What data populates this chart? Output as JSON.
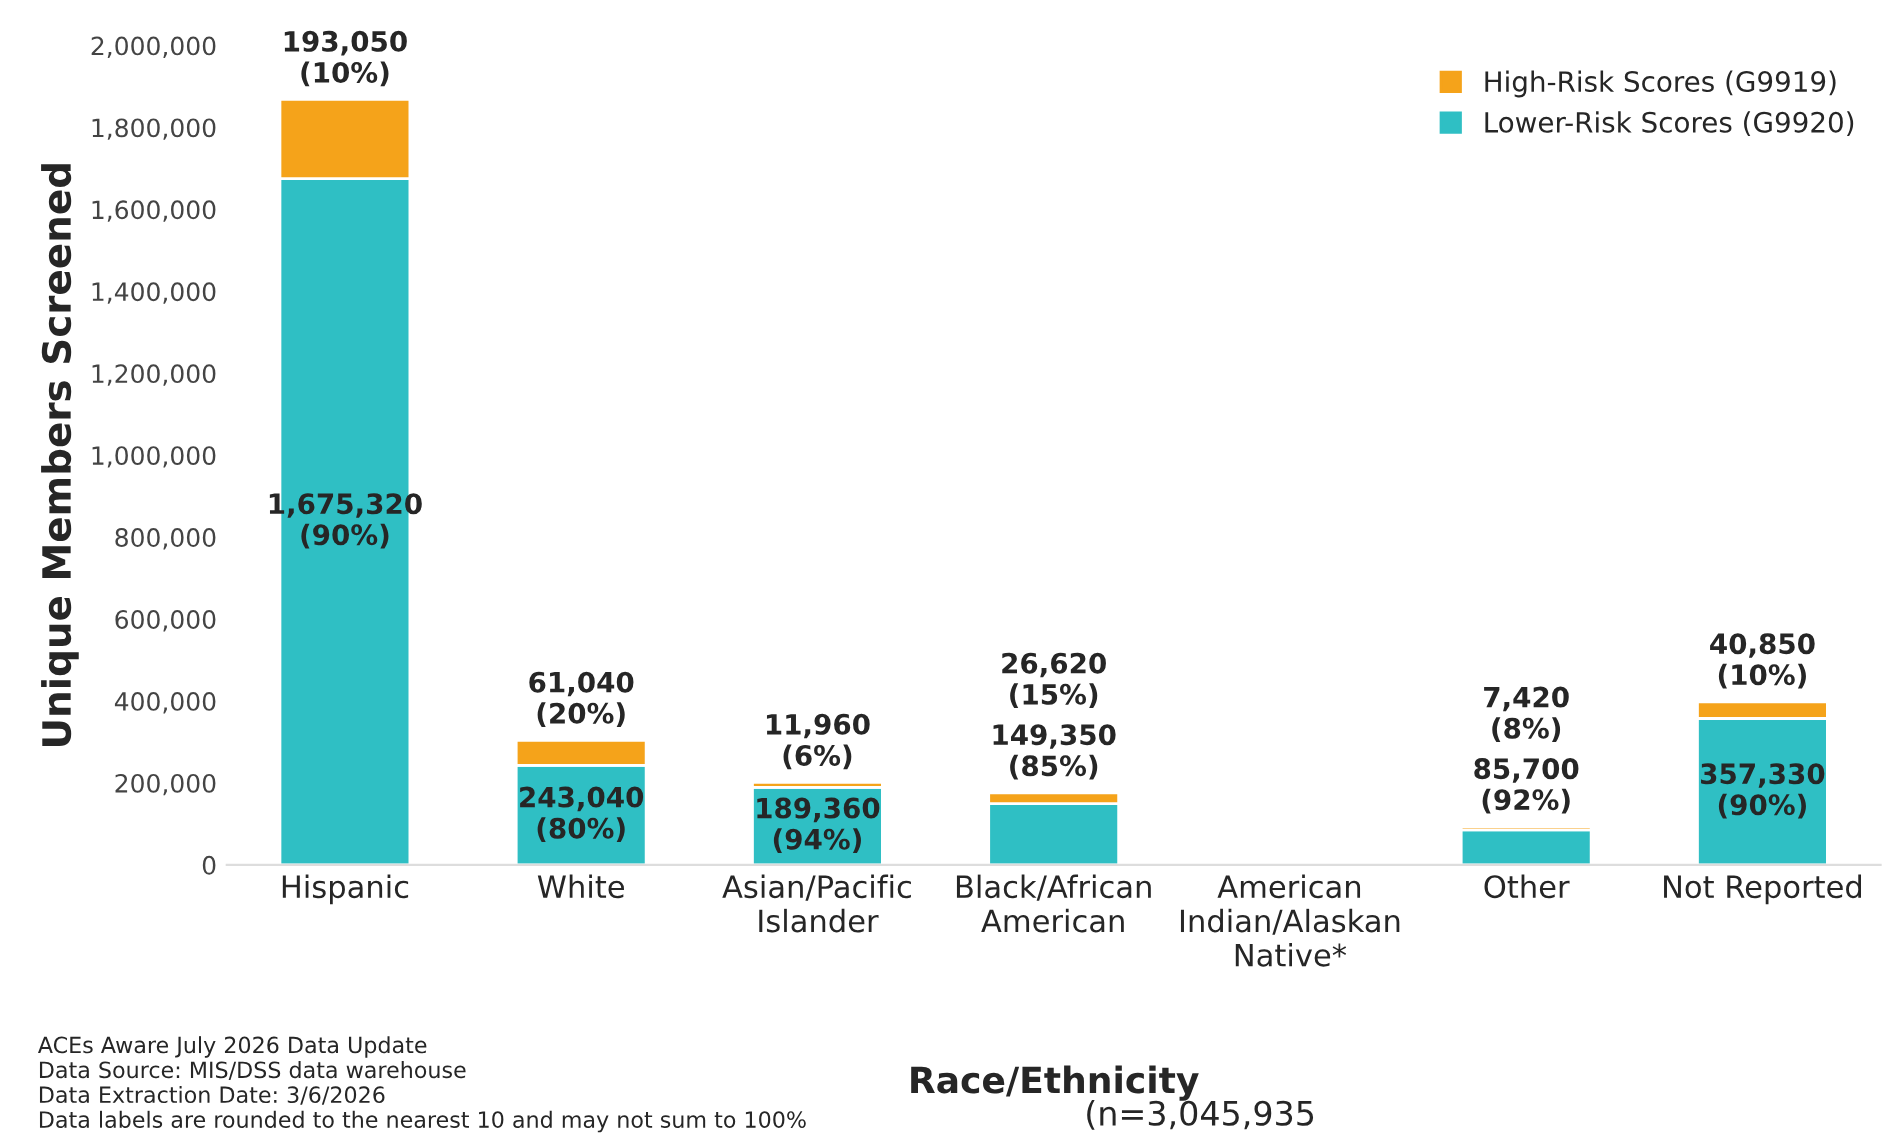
{
  "chart_data": {
    "type": "bar",
    "stacked": true,
    "categories": [
      "Hispanic",
      "White",
      "Asian/Pacific\nIslander",
      "Black/African\nAmerican",
      "American\nIndian/Alaskan\nNative*",
      "Other",
      "Not Reported"
    ],
    "series": [
      {
        "name": "Lower-Risk Scores (G9920)",
        "color": "#2fbfc4",
        "values": [
          1675320,
          243040,
          189360,
          149350,
          null,
          85700,
          357330
        ],
        "value_labels": [
          "1,675,320\n(90%)",
          "243,040\n(80%)",
          "189,360\n(94%)",
          "149,350\n(85%)",
          null,
          "85,700\n(92%)",
          "357,330\n(90%)"
        ]
      },
      {
        "name": "High-Risk Scores (G9919)",
        "color": "#f5a31a",
        "values": [
          193050,
          61040,
          11960,
          26620,
          null,
          7420,
          40850
        ],
        "value_labels": [
          "193,050\n(10%)",
          "61,040\n(20%)",
          "11,960\n(6%)",
          "26,620\n(15%)",
          null,
          "7,420\n(8%)",
          "40,850\n(10%)"
        ]
      }
    ],
    "ylabel": "Unique Members Screened",
    "xlabel": "Race/Ethnicity",
    "ylim": [
      0,
      2000000
    ],
    "yticks": [
      {
        "value": 0,
        "label": "0"
      },
      {
        "value": 200000,
        "label": "200,000"
      },
      {
        "value": 400000,
        "label": "400,000"
      },
      {
        "value": 600000,
        "label": "600,000"
      },
      {
        "value": 800000,
        "label": "800,000"
      },
      {
        "value": 1000000,
        "label": "1,000,000"
      },
      {
        "value": 1200000,
        "label": "1,200,000"
      },
      {
        "value": 1400000,
        "label": "1,400,000"
      },
      {
        "value": 1600000,
        "label": "1,600,000"
      },
      {
        "value": 1800000,
        "label": "1,800,000"
      },
      {
        "value": 2000000,
        "label": "2,000,000"
      }
    ],
    "legend": "top right",
    "grid": false,
    "annotations": [
      "(n=3,045,935",
      "ACEs Aware July 2026 Data Update\nData Source: MIS/DSS data warehouse\nData Extraction Date: 3/6/2026\nData labels are rounded to the nearest 10 and may not sum to 100%"
    ]
  }
}
